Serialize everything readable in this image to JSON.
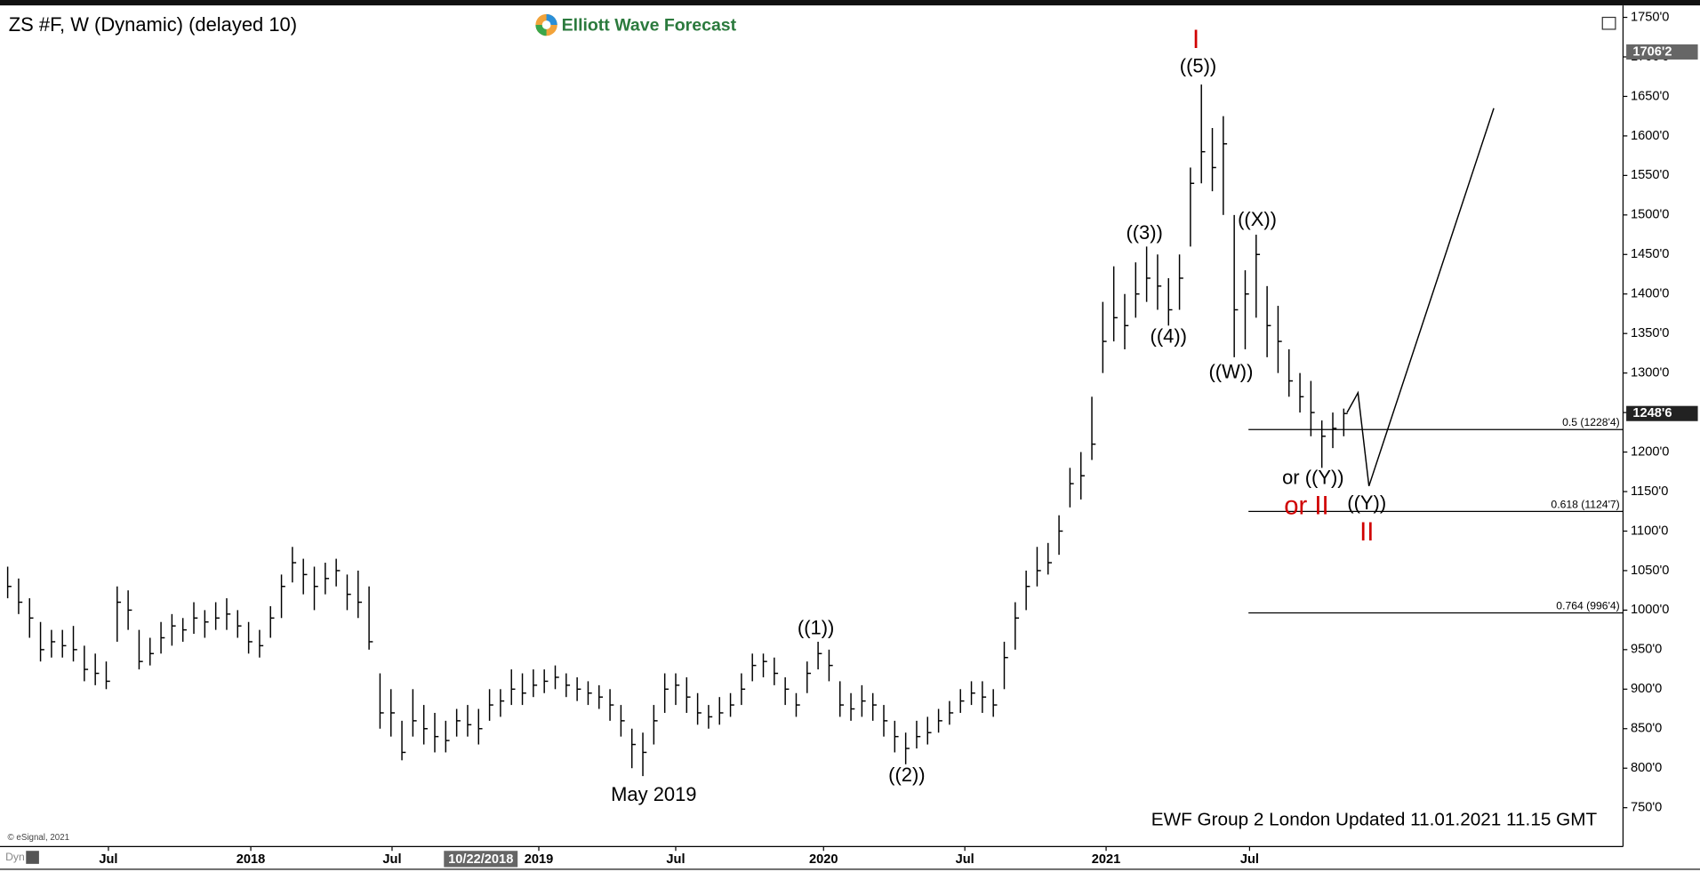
{
  "chart_data": {
    "type": "ohlc",
    "title": "ZS #F, W (Dynamic) (delayed 10)",
    "logo": "Elliott Wave Forecast",
    "footer": "EWF Group 2 London Updated 11.01.2021 11.15 GMT",
    "credit": "© eSignal, 2021",
    "mode": "Dyn",
    "color": "#000000",
    "xlim": [
      -0.7,
      147.5
    ],
    "ylim": [
      705,
      1761
    ],
    "yticks": [
      {
        "value": 750,
        "label": "750'0"
      },
      {
        "value": 800,
        "label": "800'0"
      },
      {
        "value": 850,
        "label": "850'0"
      },
      {
        "value": 900,
        "label": "900'0"
      },
      {
        "value": 950,
        "label": "950'0"
      },
      {
        "value": 1000,
        "label": "1000'0"
      },
      {
        "value": 1050,
        "label": "1050'0"
      },
      {
        "value": 1100,
        "label": "1100'0"
      },
      {
        "value": 1150,
        "label": "1150'0"
      },
      {
        "value": 1200,
        "label": "1200'0"
      },
      {
        "value": 1250,
        "label": "1250'0"
      },
      {
        "value": 1300,
        "label": "1300'0"
      },
      {
        "value": 1350,
        "label": "1350'0"
      },
      {
        "value": 1400,
        "label": "1400'0"
      },
      {
        "value": 1450,
        "label": "1450'0"
      },
      {
        "value": 1500,
        "label": "1500'0"
      },
      {
        "value": 1550,
        "label": "1550'0"
      },
      {
        "value": 1600,
        "label": "1600'0"
      },
      {
        "value": 1650,
        "label": "1650'0"
      },
      {
        "value": 1700,
        "label": "1700'0"
      },
      {
        "value": 1750,
        "label": "1750'0"
      }
    ],
    "xticks": [
      {
        "value": 9.2,
        "label": "Jul"
      },
      {
        "value": 22.2,
        "label": "2018"
      },
      {
        "value": 35.1,
        "label": "Jul"
      },
      {
        "value": 48.5,
        "label": "2019"
      },
      {
        "value": 61,
        "label": "Jul"
      },
      {
        "value": 74.5,
        "label": "2020"
      },
      {
        "value": 87.4,
        "label": "Jul"
      },
      {
        "value": 100.3,
        "label": "2021"
      },
      {
        "value": 113.4,
        "label": "Jul"
      }
    ],
    "cursor": {
      "value": 43.2,
      "label": "10/22/2018"
    },
    "high": [
      1055,
      1040,
      1015,
      985,
      975,
      975,
      980,
      955,
      945,
      935,
      1030,
      1025,
      975,
      965,
      985,
      995,
      990,
      1010,
      1000,
      1010,
      1015,
      1000,
      985,
      975,
      1005,
      1045,
      1080,
      1065,
      1055,
      1060,
      1065,
      1045,
      1050,
      1030,
      920,
      900,
      860,
      900,
      880,
      870,
      860,
      875,
      880,
      875,
      900,
      900,
      925,
      920,
      925,
      925,
      930,
      920,
      915,
      910,
      905,
      900,
      880,
      850,
      845,
      880,
      920,
      920,
      915,
      895,
      880,
      890,
      895,
      920,
      945,
      945,
      940,
      915,
      895,
      935,
      960,
      950,
      910,
      895,
      905,
      895,
      880,
      860,
      845,
      860,
      865,
      875,
      885,
      900,
      910,
      910,
      900,
      960,
      1010,
      1050,
      1080,
      1085,
      1120,
      1180,
      1200,
      1270,
      1390,
      1435,
      1400,
      1440,
      1460,
      1450,
      1420,
      1450,
      1560,
      1665,
      1610,
      1625,
      1500,
      1430,
      1475,
      1410,
      1385,
      1330,
      1300,
      1290,
      1240,
      1250,
      1255
    ],
    "low": [
      1015,
      995,
      965,
      935,
      940,
      940,
      935,
      910,
      905,
      900,
      960,
      975,
      925,
      930,
      945,
      955,
      960,
      970,
      965,
      975,
      975,
      965,
      945,
      940,
      965,
      990,
      1035,
      1020,
      1000,
      1020,
      1030,
      1000,
      990,
      950,
      850,
      840,
      810,
      840,
      830,
      820,
      820,
      840,
      840,
      830,
      860,
      865,
      880,
      880,
      890,
      895,
      900,
      890,
      885,
      880,
      875,
      860,
      840,
      800,
      790,
      830,
      870,
      880,
      870,
      855,
      850,
      855,
      865,
      880,
      910,
      915,
      905,
      880,
      865,
      895,
      925,
      910,
      865,
      860,
      865,
      860,
      840,
      820,
      805,
      825,
      830,
      845,
      855,
      870,
      880,
      870,
      865,
      900,
      950,
      1000,
      1030,
      1045,
      1070,
      1130,
      1140,
      1190,
      1300,
      1340,
      1330,
      1370,
      1390,
      1380,
      1360,
      1380,
      1460,
      1540,
      1530,
      1500,
      1320,
      1330,
      1370,
      1320,
      1300,
      1270,
      1250,
      1220,
      1180,
      1205,
      1220
    ],
    "close": [
      1030,
      1010,
      990,
      950,
      960,
      955,
      950,
      925,
      920,
      910,
      1010,
      1000,
      935,
      945,
      965,
      980,
      975,
      990,
      985,
      990,
      995,
      980,
      960,
      955,
      990,
      1030,
      1060,
      1045,
      1030,
      1040,
      1050,
      1020,
      1010,
      960,
      870,
      870,
      820,
      860,
      850,
      840,
      835,
      860,
      855,
      850,
      880,
      885,
      900,
      895,
      905,
      910,
      915,
      905,
      900,
      895,
      890,
      880,
      860,
      830,
      820,
      860,
      900,
      905,
      890,
      870,
      865,
      870,
      880,
      900,
      930,
      935,
      920,
      900,
      880,
      920,
      945,
      930,
      880,
      875,
      885,
      880,
      860,
      840,
      825,
      840,
      845,
      860,
      870,
      885,
      895,
      890,
      880,
      940,
      990,
      1030,
      1050,
      1060,
      1100,
      1160,
      1170,
      1210,
      1340,
      1370,
      1360,
      1400,
      1420,
      1410,
      1380,
      1420,
      1540,
      1580,
      1560,
      1590,
      1380,
      1400,
      1450,
      1360,
      1340,
      1290,
      1270,
      1250,
      1220,
      1230,
      1248.75
    ],
    "price_markers": [
      {
        "value": 1706.25,
        "label": "1706'2"
      },
      {
        "value": 1248.75,
        "label": "1248'6"
      }
    ],
    "fib_levels": [
      {
        "value": 1228.5,
        "label": "0.5 (1228'4)"
      },
      {
        "value": 1124.875,
        "label": "0.618 (1124'7)"
      },
      {
        "value": 996.5,
        "label": "0.764 (996'4)"
      }
    ],
    "projection": {
      "x": [
        122.3,
        123.3,
        124.3,
        135.7
      ],
      "values": [
        1250,
        1275,
        1157,
        1635
      ]
    },
    "annotations": [
      {
        "text": "I",
        "x": 108.5,
        "y": 1720,
        "color": "#d00000"
      },
      {
        "text": "((5))",
        "x": 108.7,
        "y": 1687,
        "color": "#000000"
      },
      {
        "text": "((3))",
        "x": 103.8,
        "y": 1476,
        "color": "#000000"
      },
      {
        "text": "((4))",
        "x": 106,
        "y": 1345,
        "color": "#000000"
      },
      {
        "text": "((W))",
        "x": 111.7,
        "y": 1300,
        "color": "#000000"
      },
      {
        "text": "((X))",
        "x": 114.1,
        "y": 1493,
        "color": "#000000"
      },
      {
        "text": "or ((Y))",
        "x": 119.2,
        "y": 1166,
        "color": "#000000"
      },
      {
        "text": "or II",
        "x": 118.6,
        "y": 1130,
        "color": "#d00000"
      },
      {
        "text": "((Y))",
        "x": 124.1,
        "y": 1134,
        "color": "#000000"
      },
      {
        "text": "II",
        "x": 124.1,
        "y": 1097,
        "color": "#d00000"
      },
      {
        "text": "((1))",
        "x": 73.8,
        "y": 976,
        "color": "#000000"
      },
      {
        "text": "((2))",
        "x": 82.1,
        "y": 790,
        "color": "#000000"
      },
      {
        "text": "May 2019",
        "x": 59,
        "y": 765,
        "color": "#000000"
      }
    ]
  }
}
